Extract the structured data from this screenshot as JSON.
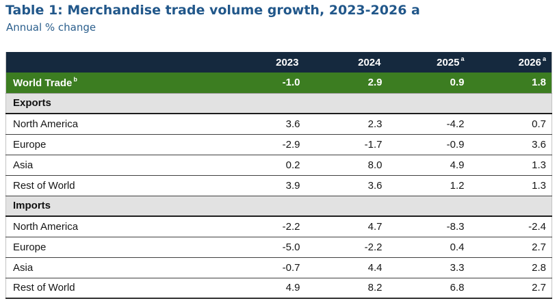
{
  "chart_data": {
    "type": "table",
    "title": "Table 1: Merchandise trade volume growth, 2023-2026 a",
    "subtitle": "Annual % change",
    "columns": [
      "2023",
      "2024",
      "2025",
      "2026"
    ],
    "column_superscripts": [
      "",
      "",
      "a",
      "a"
    ],
    "summary_row": {
      "label": "World Trade",
      "superscript": "b",
      "values": [
        "-1.0",
        "2.9",
        "0.9",
        "1.8"
      ]
    },
    "sections": [
      {
        "label": "Exports",
        "rows": [
          {
            "label": "North America",
            "values": [
              "3.6",
              "2.3",
              "-4.2",
              "0.7"
            ]
          },
          {
            "label": "Europe",
            "values": [
              "-2.9",
              "-1.7",
              "-0.9",
              "3.6"
            ]
          },
          {
            "label": "Asia",
            "values": [
              "0.2",
              "8.0",
              "4.9",
              "1.3"
            ]
          },
          {
            "label": "Rest of World",
            "values": [
              "3.9",
              "3.6",
              "1.2",
              "1.3"
            ]
          }
        ]
      },
      {
        "label": "Imports",
        "rows": [
          {
            "label": "North America",
            "values": [
              "-2.2",
              "4.7",
              "-8.3",
              "-2.4"
            ]
          },
          {
            "label": "Europe",
            "values": [
              "-5.0",
              "-2.2",
              "0.4",
              "2.7"
            ]
          },
          {
            "label": "Asia",
            "values": [
              "-0.7",
              "4.4",
              "3.3",
              "2.8"
            ]
          },
          {
            "label": "Rest of World",
            "values": [
              "4.9",
              "8.2",
              "6.8",
              "2.7"
            ]
          }
        ]
      }
    ],
    "colors": {
      "title_blue": "#21578A",
      "header_navy": "#15293E",
      "world_trade_green": "#3C7D21",
      "section_gray": "#E2E2E2"
    }
  }
}
